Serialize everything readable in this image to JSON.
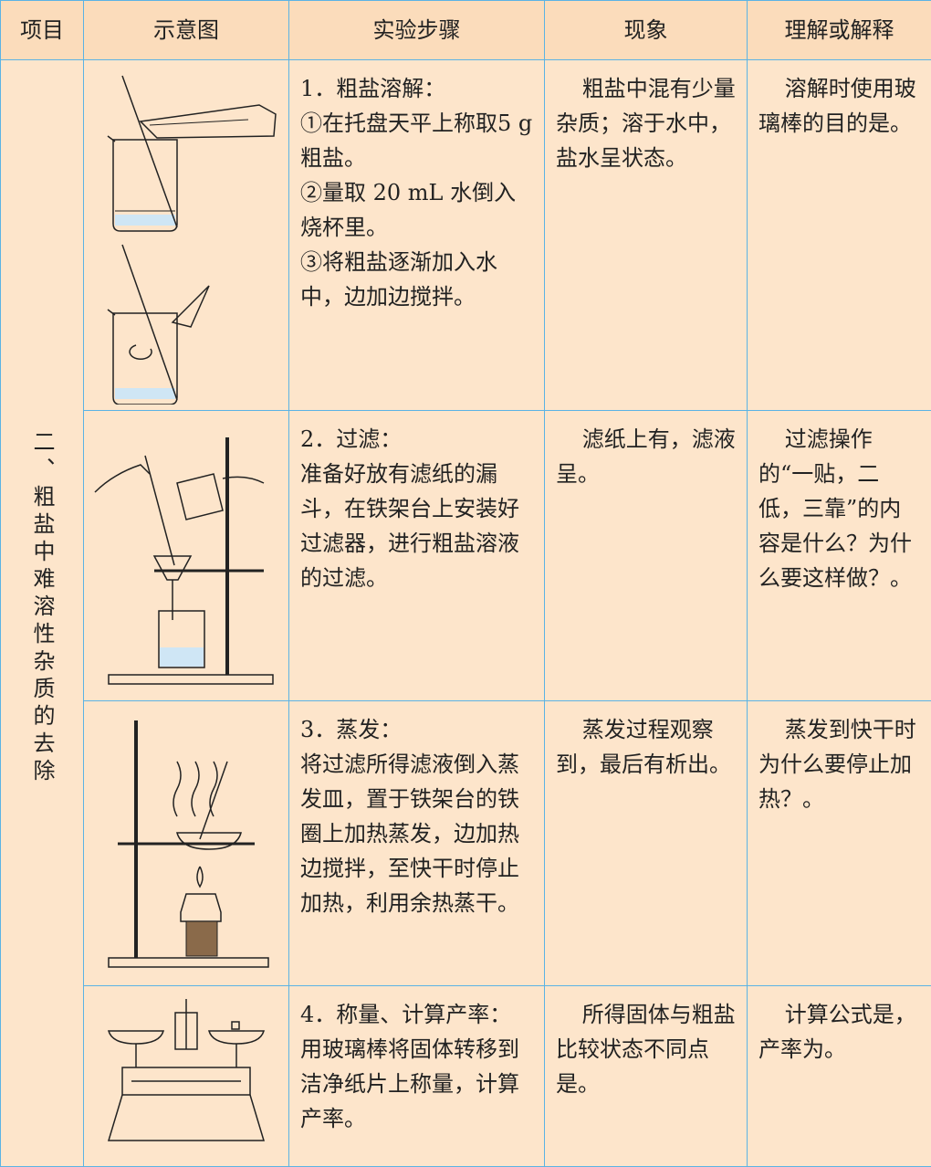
{
  "header": [
    "项目",
    "示意图",
    "实验步骤",
    "现象",
    "理解或解释"
  ],
  "section": "二、粗盐中难溶性杂质的去除",
  "rows": [
    {
      "steps": [
        "1．粗盐溶解：",
        "①在托盘天平上称取5 g粗盐。",
        "②量取 20 mL 水倒入烧杯里。",
        "③将粗盐逐渐加入水中，边加边搅拌。"
      ],
      "phenomenon": [
        "粗盐中混有少量",
        "杂质；溶于水中，盐水呈",
        "状态。"
      ],
      "explanation": [
        "溶解时使用玻璃棒的目的是",
        "。"
      ]
    },
    {
      "steps": [
        "2．过滤：",
        "准备好放有滤纸的漏斗，在铁架台上安装好过滤器，进行粗盐溶液的过滤。"
      ],
      "phenomenon": [
        "滤纸上有",
        "，滤液呈",
        "。"
      ],
      "explanation": [
        "过滤操作的“一贴，二低，三靠”的内容是什么？为什么要这样做？",
        "。"
      ]
    },
    {
      "steps": [
        "3．蒸发：",
        "将过滤所得滤液倒入蒸发皿，置于铁架台的铁圈上加热蒸发，边加热边搅拌，至快干时停止加热，利用余热蒸干。"
      ],
      "phenomenon": [
        "蒸发过程观察到",
        "，最后有",
        "析出。"
      ],
      "explanation": [
        "蒸发到快干时为什么要停止加热？",
        "。"
      ]
    },
    {
      "steps": [
        "4．称量、计算产率：",
        "用玻璃棒将固体转移到洁净纸片上称量，计算产率。"
      ],
      "phenomenon": [
        "所得固体与粗盐比较状态不同点是",
        "。"
      ],
      "explanation": [
        "计算公式是",
        "，产率为",
        "。"
      ]
    }
  ]
}
